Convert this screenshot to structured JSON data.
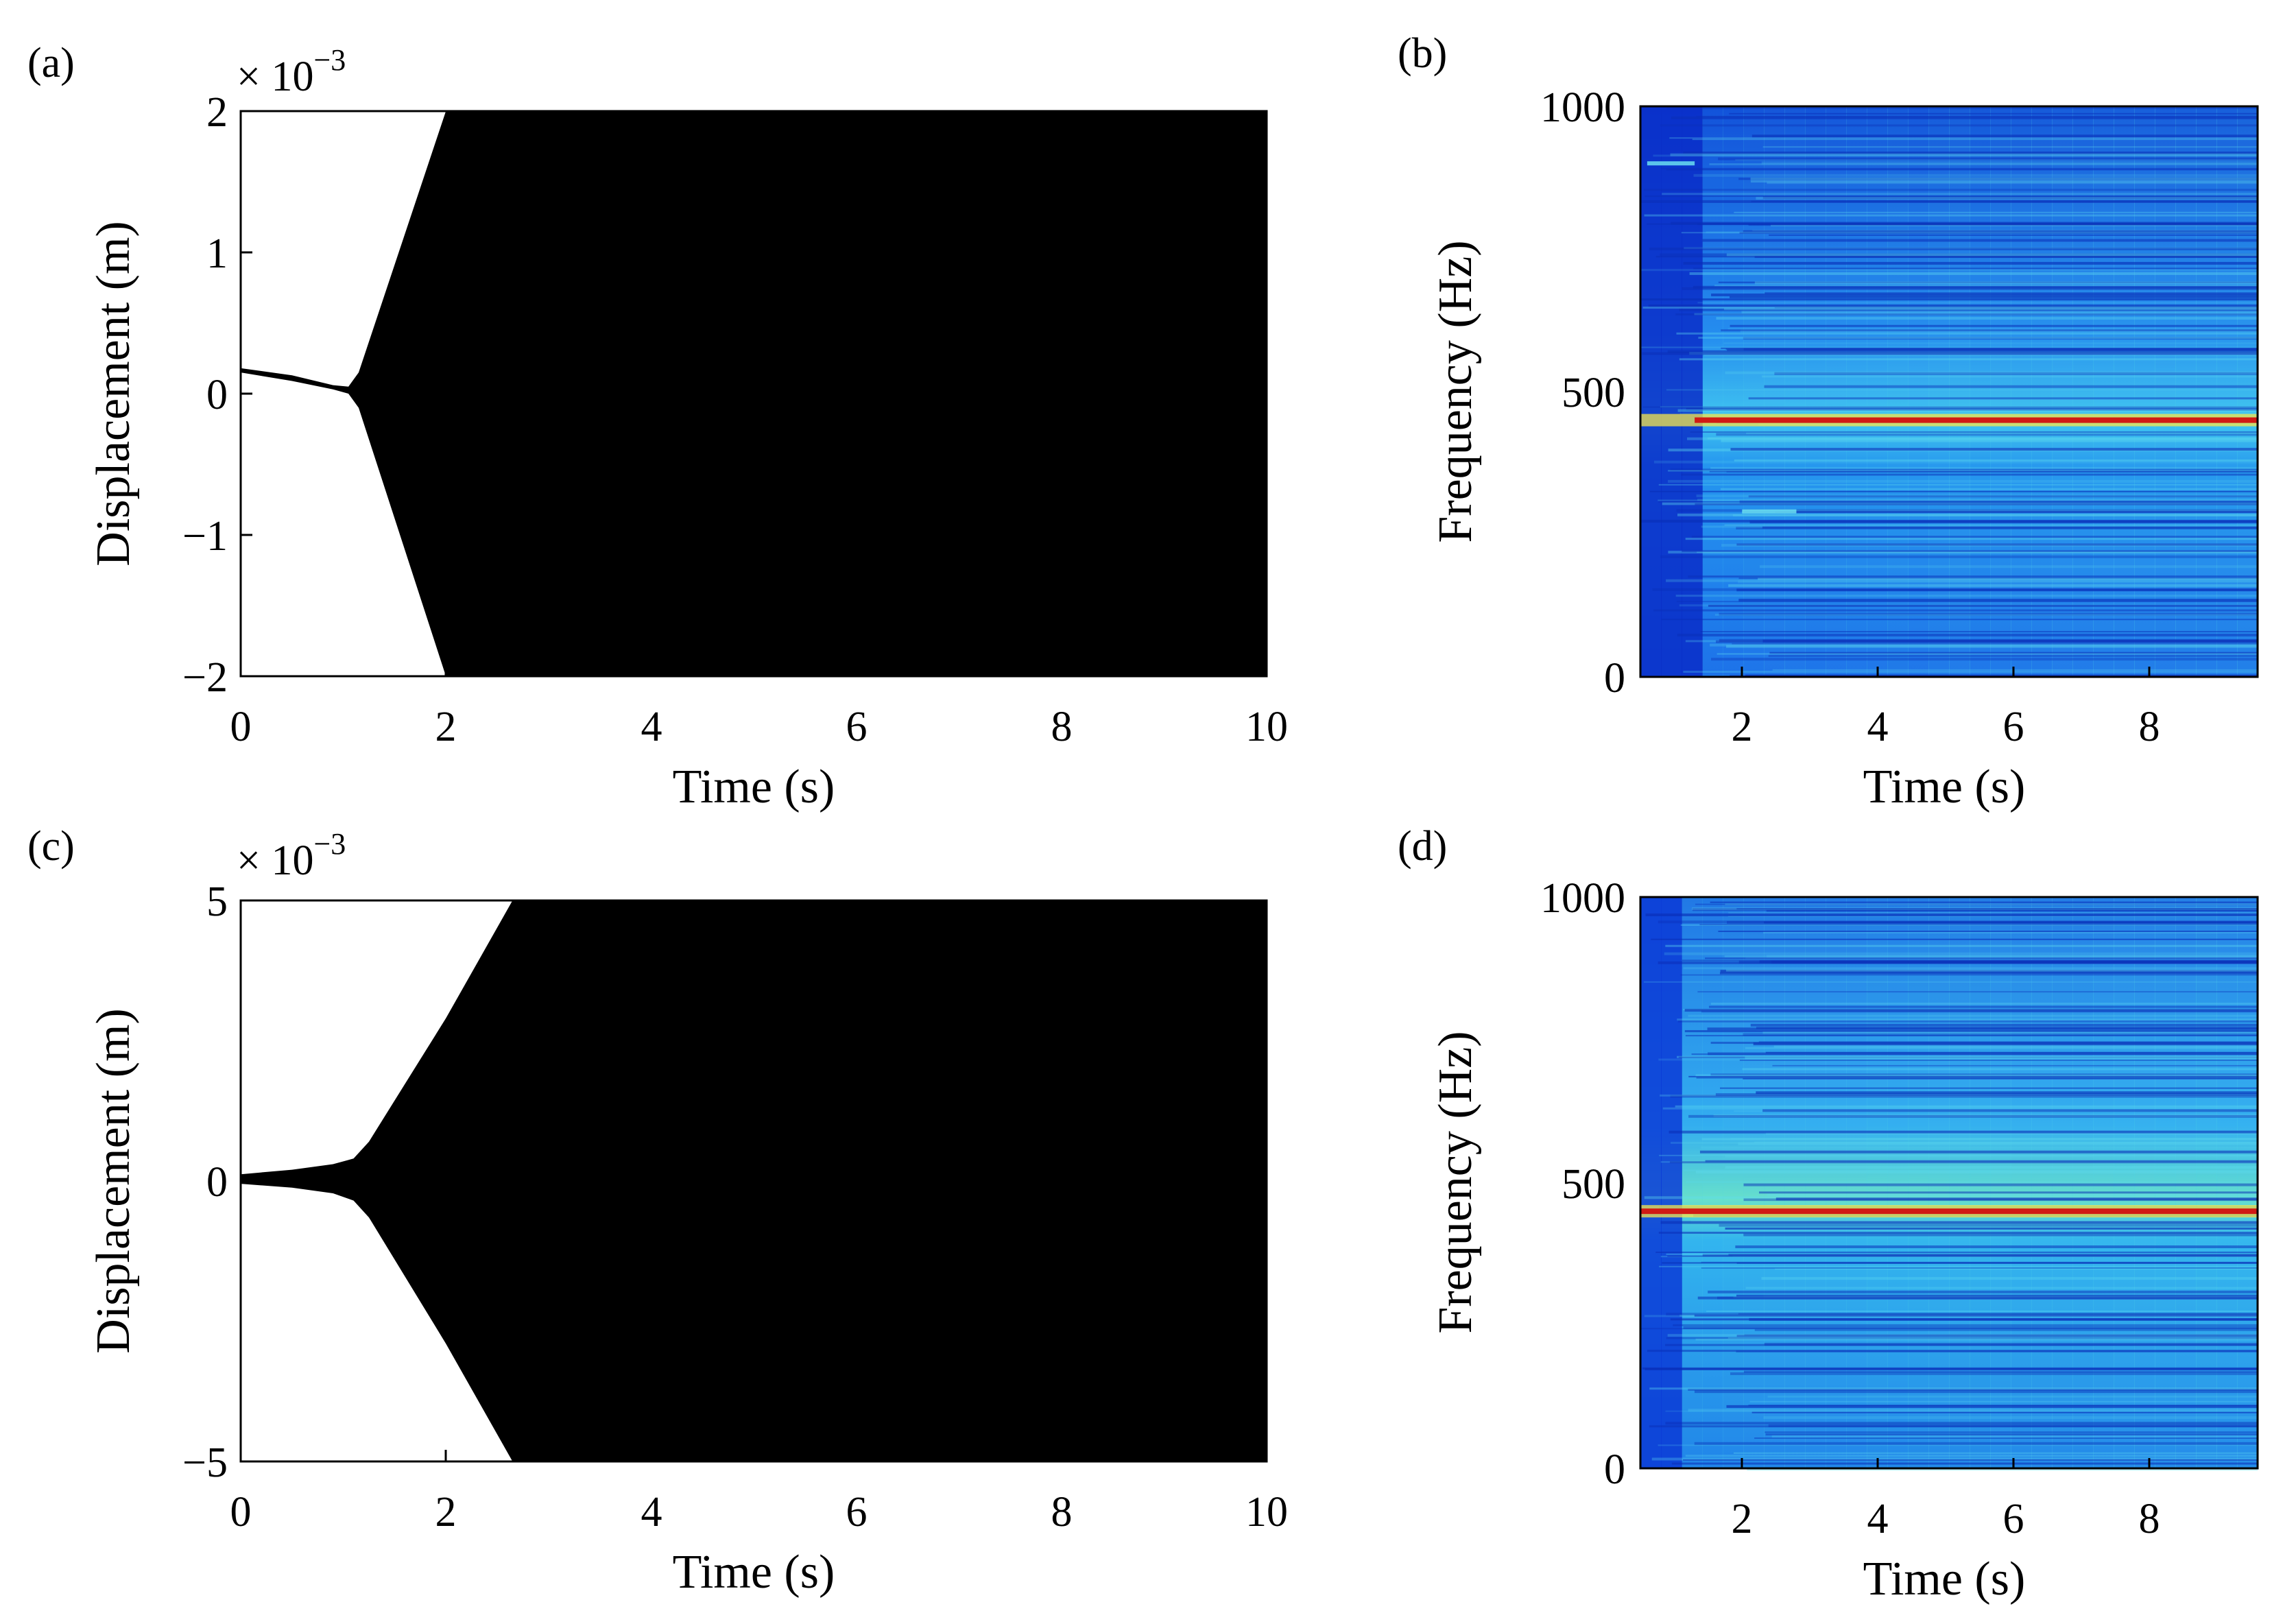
{
  "figure": {
    "description_panels": [
      "(a)",
      "(b)",
      "(c)",
      "(d)"
    ]
  },
  "colors": {
    "background": "#ffffff",
    "envelope": "#000000",
    "ridge": "#d01a14"
  },
  "chart_data": [
    {
      "panel_label": "(a)",
      "type": "line",
      "title": "",
      "xlabel": "Time (s)",
      "ylabel": "Displacement (m)",
      "exponent_label": "× 10",
      "exponent_power": "−3",
      "xlim": [
        0,
        10
      ],
      "ylim": [
        -2,
        2
      ],
      "xticks": [
        0,
        2,
        4,
        6,
        8,
        10
      ],
      "xtick_labels": [
        "0",
        "2",
        "4",
        "6",
        "8",
        "10"
      ],
      "yticks": [
        2,
        1,
        0,
        -1,
        -2
      ],
      "ytick_labels": [
        "2",
        "1",
        "0",
        "−1",
        "−2"
      ],
      "envelope_upper": [
        [
          0,
          0.18
        ],
        [
          0.5,
          0.13
        ],
        [
          0.9,
          0.06
        ],
        [
          1.05,
          0.05
        ],
        [
          1.15,
          0.15
        ],
        [
          2.0,
          2.0
        ],
        [
          10,
          2.0
        ]
      ],
      "envelope_lower": [
        [
          0,
          0.15
        ],
        [
          0.5,
          0.09
        ],
        [
          0.9,
          0.03
        ],
        [
          1.05,
          0.0
        ],
        [
          1.15,
          -0.1
        ],
        [
          2.0,
          -2.0
        ],
        [
          10,
          -2.0
        ]
      ]
    },
    {
      "panel_label": "(b)",
      "type": "heatmap",
      "title": "",
      "xlabel": "Time (s)",
      "ylabel": "Frequency (Hz)",
      "xlim": [
        0.5,
        9.6
      ],
      "ylim": [
        0,
        1000
      ],
      "xticks": [
        2,
        4,
        6,
        8
      ],
      "xtick_labels": [
        "2",
        "4",
        "6",
        "8"
      ],
      "yticks": [
        1000,
        500,
        0
      ],
      "ytick_labels": [
        "1000",
        "500",
        "0"
      ],
      "ridge_frequency_hz": 450,
      "ridge_onset_s": 1.3,
      "secondary_feature_hz": [
        900,
        290
      ]
    },
    {
      "panel_label": "(c)",
      "type": "line",
      "title": "",
      "xlabel": "Time (s)",
      "ylabel": "Displacement (m)",
      "exponent_label": "× 10",
      "exponent_power": "−3",
      "xlim": [
        0,
        10
      ],
      "ylim": [
        -5,
        5
      ],
      "xticks": [
        0,
        2,
        4,
        6,
        8,
        10
      ],
      "xtick_labels": [
        "0",
        "2",
        "4",
        "6",
        "8",
        "10"
      ],
      "yticks": [
        5,
        0,
        -5
      ],
      "ytick_labels": [
        "5",
        "0",
        "−5"
      ],
      "envelope_upper": [
        [
          0,
          0.12
        ],
        [
          0.5,
          0.2
        ],
        [
          0.9,
          0.3
        ],
        [
          1.1,
          0.4
        ],
        [
          1.25,
          0.7
        ],
        [
          2.0,
          2.9
        ],
        [
          2.65,
          5.0
        ],
        [
          10,
          5.0
        ]
      ],
      "envelope_lower": [
        [
          0,
          -0.05
        ],
        [
          0.5,
          -0.12
        ],
        [
          0.9,
          -0.22
        ],
        [
          1.1,
          -0.35
        ],
        [
          1.25,
          -0.65
        ],
        [
          2.0,
          -2.9
        ],
        [
          2.65,
          -5.0
        ],
        [
          10,
          -5.0
        ]
      ]
    },
    {
      "panel_label": "(d)",
      "type": "heatmap",
      "title": "",
      "xlabel": "Time (s)",
      "ylabel": "Frequency (Hz)",
      "xlim": [
        0.5,
        9.6
      ],
      "ylim": [
        0,
        1000
      ],
      "xticks": [
        2,
        4,
        6,
        8
      ],
      "xtick_labels": [
        "2",
        "4",
        "6",
        "8"
      ],
      "yticks": [
        1000,
        500,
        0
      ],
      "ytick_labels": [
        "1000",
        "500",
        "0"
      ],
      "ridge_frequency_hz": 450,
      "ridge_onset_s": 0.5
    }
  ]
}
